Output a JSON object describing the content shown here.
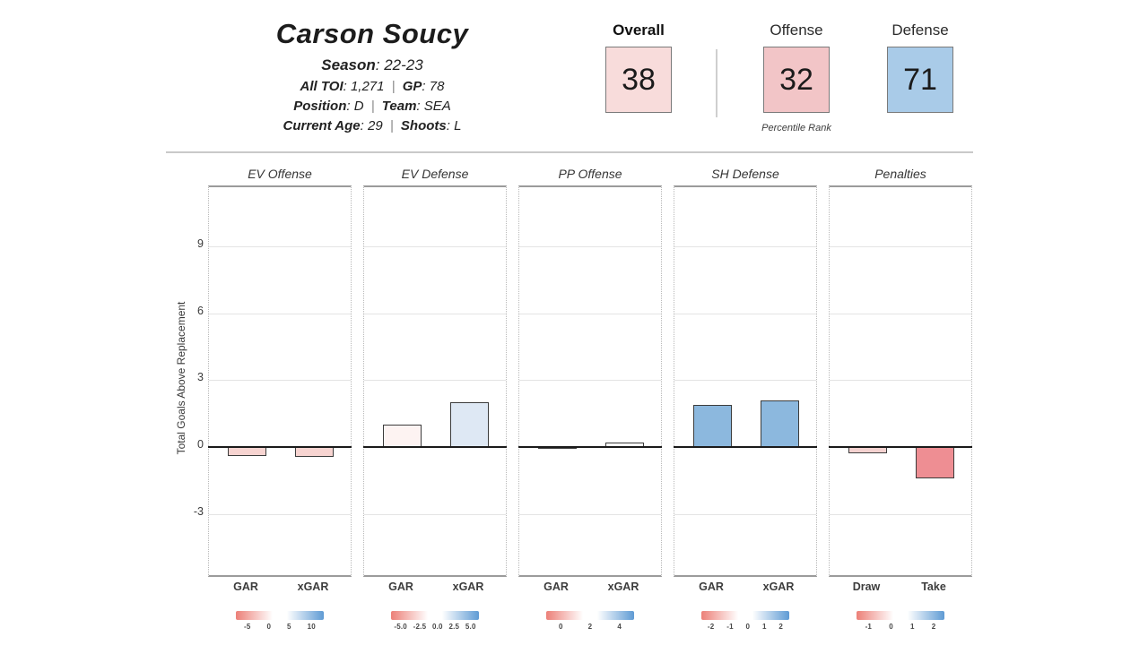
{
  "header": {
    "player_name": "Carson Soucy",
    "info_lines": [
      [
        {
          "label": "Season",
          "value": "22-23"
        }
      ],
      [
        {
          "label": "All TOI",
          "value": "1,271"
        },
        {
          "label": "GP",
          "value": "78"
        }
      ],
      [
        {
          "label": "Position",
          "value": "D"
        },
        {
          "label": "Team",
          "value": "SEA"
        }
      ],
      [
        {
          "label": "Current Age",
          "value": "29"
        },
        {
          "label": "Shoots",
          "value": "L"
        }
      ]
    ],
    "separator": "|",
    "percentiles": [
      {
        "label": "Overall",
        "value": "38",
        "box_color": "#f8dcdb",
        "bold": true
      },
      {
        "label": "Offense",
        "value": "32",
        "box_color": "#f2c5c7",
        "bold": false
      },
      {
        "label": "Defense",
        "value": "71",
        "box_color": "#a9cbe8",
        "bold": false
      }
    ],
    "caption": "Percentile Rank"
  },
  "chart_data": {
    "type": "bar",
    "ylabel": "Total Goals Above Replacement",
    "yticks": [
      9,
      6,
      3,
      0,
      -3
    ],
    "ylim": [
      -5.9,
      11.65
    ],
    "grid": "horizontal",
    "legend_position": "below-each-panel",
    "colors": {
      "negative_strong": "#ee8e93",
      "negative_light": "#f6d2cf",
      "neutral": "#fdfdfc",
      "positive_light": "#dee8f4",
      "positive_strong": "#8cb8de",
      "legend_red": "#ec8078",
      "legend_blue": "#5f9bd4"
    },
    "panels": [
      {
        "title": "EV Offense",
        "categories": [
          "GAR",
          "xGAR"
        ],
        "values": [
          -0.4,
          -0.45
        ],
        "bar_colors": [
          "#f7d4d1",
          "#f7d4d1"
        ],
        "legend_ticks": [
          "-5",
          "0",
          "5",
          "10"
        ]
      },
      {
        "title": "EV Defense",
        "categories": [
          "GAR",
          "xGAR"
        ],
        "values": [
          1.0,
          2.0
        ],
        "bar_colors": [
          "#fdf3f2",
          "#dee8f4"
        ],
        "legend_ticks": [
          "-5.0",
          "-2.5",
          "0.0",
          "2.5",
          "5.0"
        ]
      },
      {
        "title": "PP Offense",
        "categories": [
          "GAR",
          "xGAR"
        ],
        "values": [
          -0.1,
          0.2
        ],
        "bar_colors": [
          "#f6f6f8",
          "#fdfdfc"
        ],
        "legend_ticks": [
          "0",
          "2",
          "4"
        ]
      },
      {
        "title": "SH Defense",
        "categories": [
          "GAR",
          "xGAR"
        ],
        "values": [
          1.9,
          2.1
        ],
        "bar_colors": [
          "#8cb8de",
          "#8cb8de"
        ],
        "legend_ticks": [
          "-2",
          "-1",
          "0",
          "1",
          "2"
        ]
      },
      {
        "title": "Penalties",
        "categories": [
          "Draw",
          "Take"
        ],
        "values": [
          -0.3,
          -1.4
        ],
        "bar_colors": [
          "#f4d2d0",
          "#ee8e93"
        ],
        "legend_ticks": [
          "-1",
          "0",
          "1",
          "2"
        ]
      }
    ]
  }
}
